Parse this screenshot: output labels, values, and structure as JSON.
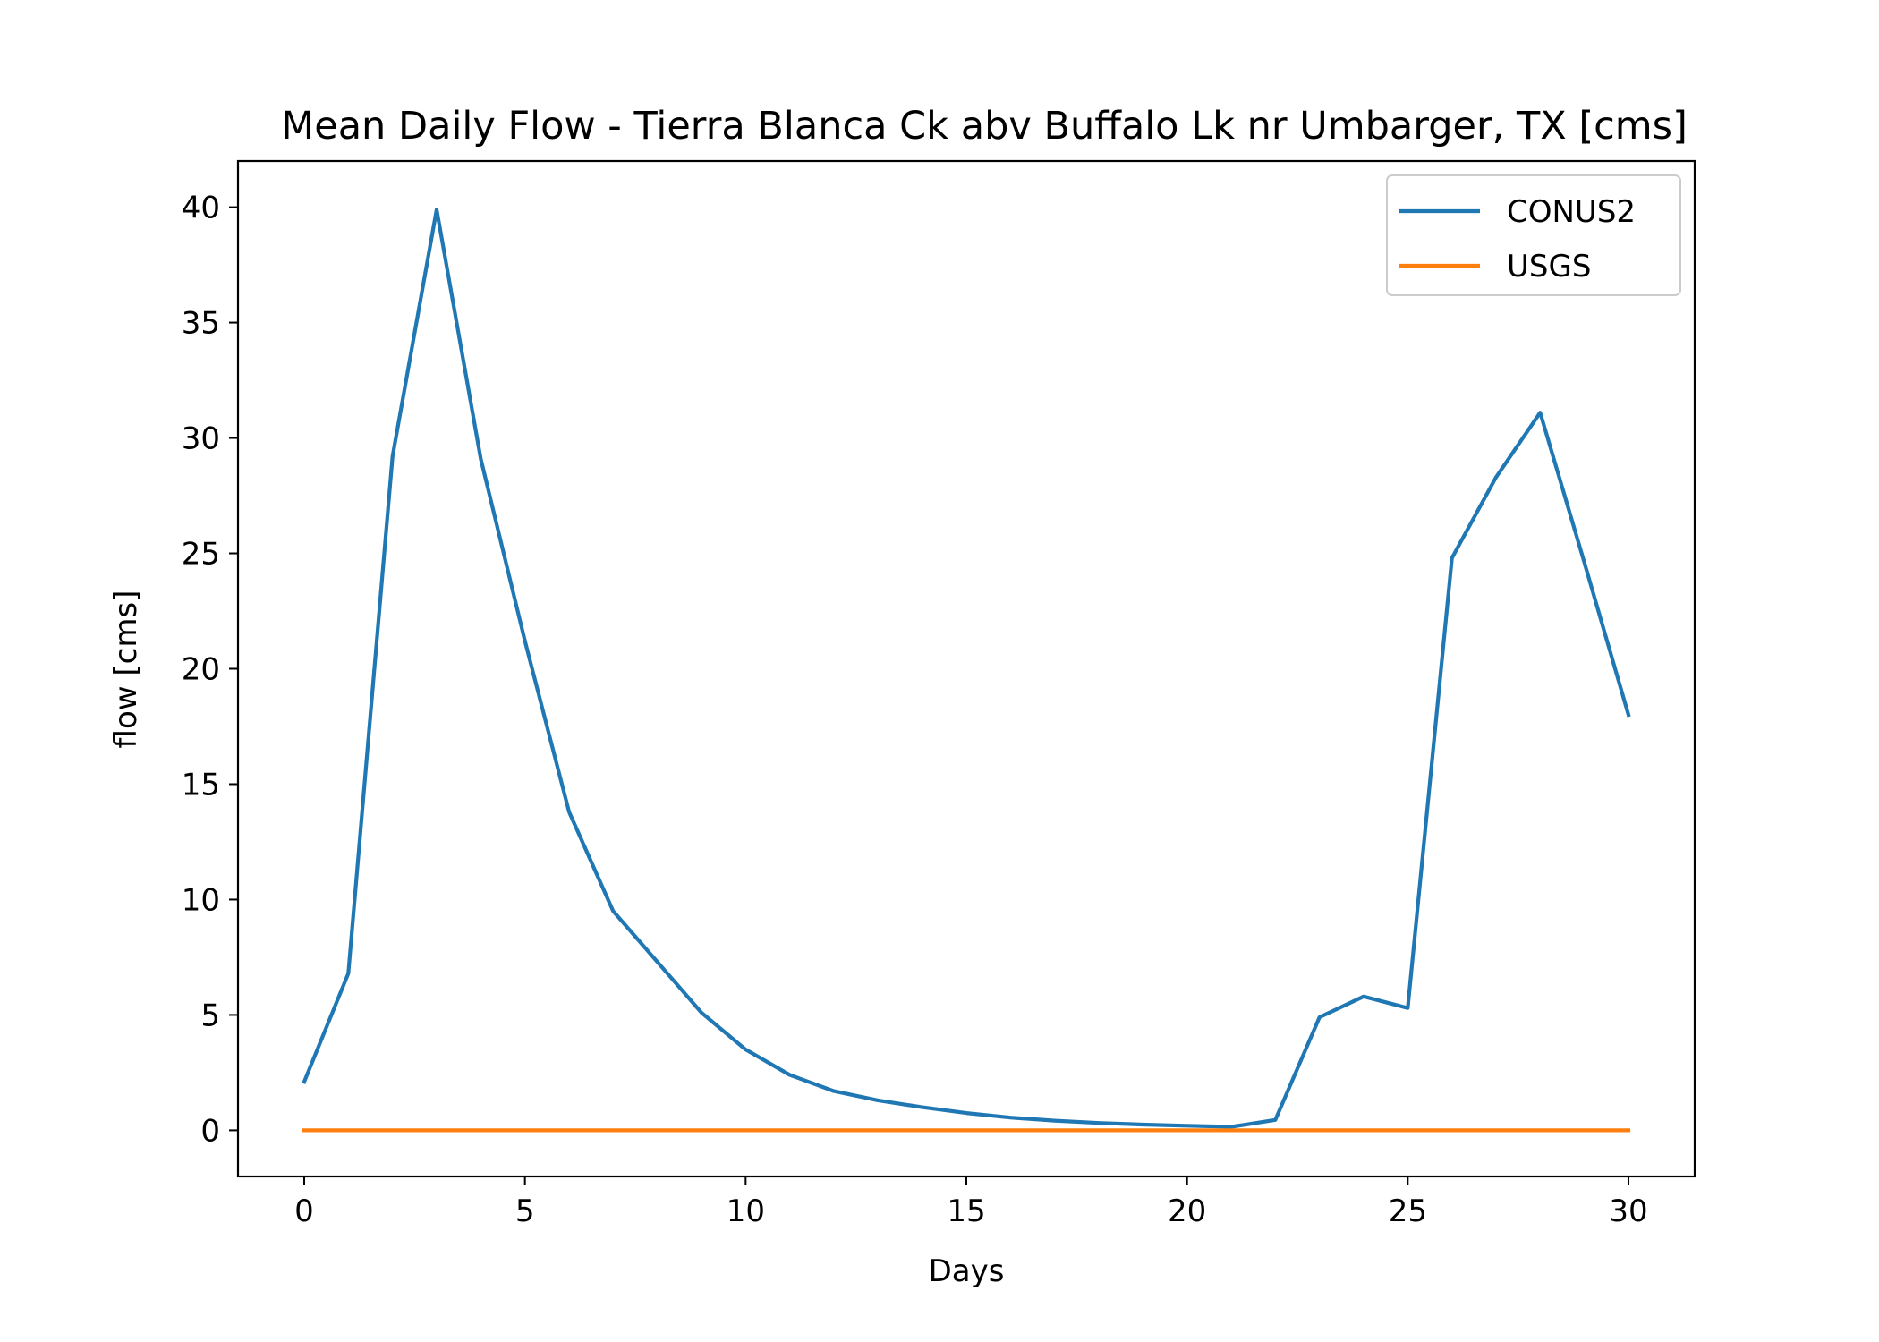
{
  "chart_data": {
    "type": "line",
    "title": "Mean Daily Flow - Tierra Blanca Ck abv Buffalo Lk nr Umbarger, TX [cms]",
    "xlabel": "Days",
    "ylabel": "flow [cms]",
    "xlim": [
      -1.5,
      31.5
    ],
    "ylim": [
      -2,
      42
    ],
    "xticks": [
      0,
      5,
      10,
      15,
      20,
      25,
      30
    ],
    "yticks": [
      0,
      5,
      10,
      15,
      20,
      25,
      30,
      35,
      40
    ],
    "grid": false,
    "legend_position": "top-right",
    "x": [
      0,
      1,
      2,
      3,
      4,
      5,
      6,
      7,
      8,
      9,
      10,
      11,
      12,
      13,
      14,
      15,
      16,
      17,
      18,
      19,
      20,
      21,
      22,
      23,
      24,
      25,
      26,
      27,
      28,
      29,
      30
    ],
    "series": [
      {
        "name": "CONUS2",
        "color": "#1f77b4",
        "values": [
          2.1,
          6.8,
          29.2,
          39.9,
          29.1,
          21.2,
          13.8,
          9.5,
          7.3,
          5.1,
          3.5,
          2.4,
          1.7,
          1.3,
          1.0,
          0.75,
          0.55,
          0.42,
          0.32,
          0.25,
          0.2,
          0.15,
          0.45,
          4.9,
          5.8,
          5.3,
          24.8,
          28.3,
          31.1,
          24.6,
          18.0
        ]
      },
      {
        "name": "USGS",
        "color": "#ff7f0e",
        "values": [
          0,
          0,
          0,
          0,
          0,
          0,
          0,
          0,
          0,
          0,
          0,
          0,
          0,
          0,
          0,
          0,
          0,
          0,
          0,
          0,
          0,
          0,
          0,
          0,
          0,
          0,
          0,
          0,
          0,
          0,
          0
        ]
      }
    ]
  }
}
